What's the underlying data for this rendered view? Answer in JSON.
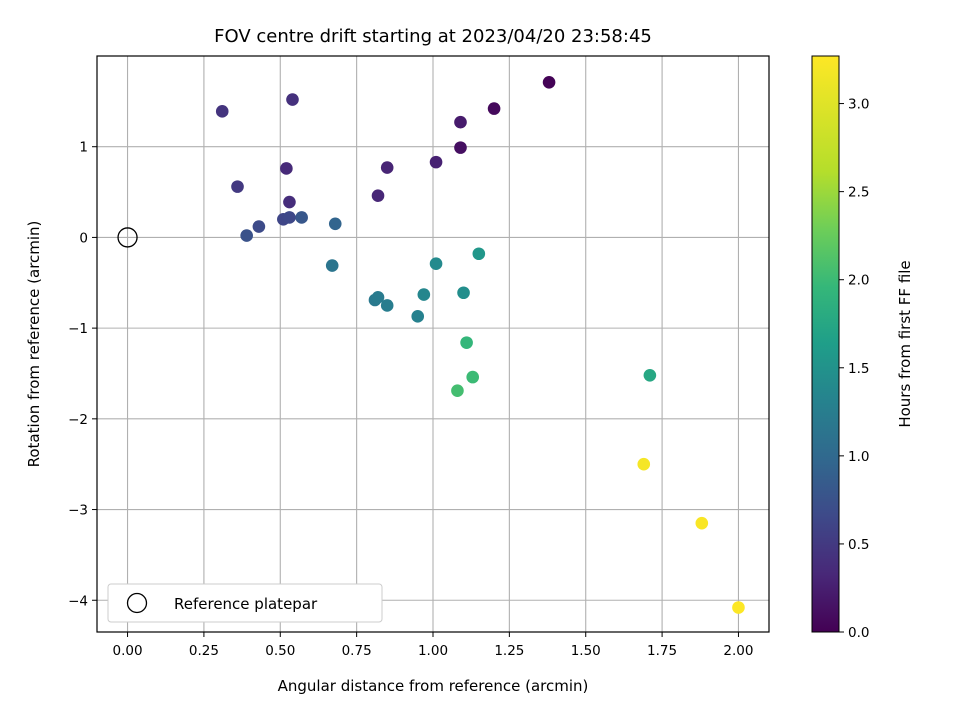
{
  "chart_data": {
    "type": "scatter",
    "title": "FOV centre drift starting at 2023/04/20 23:58:45",
    "xlabel": "Angular distance from reference (arcmin)",
    "ylabel": "Rotation from reference (arcmin)",
    "xlim": [
      -0.1,
      2.1
    ],
    "ylim": [
      -4.35,
      2.0
    ],
    "xticks": [
      "0.00",
      "0.25",
      "0.50",
      "0.75",
      "1.00",
      "1.25",
      "1.50",
      "1.75",
      "2.00"
    ],
    "yticks": [
      "1",
      "0",
      "−1",
      "−2",
      "−3",
      "−4"
    ],
    "grid": true,
    "legend": {
      "placement": "lower-left",
      "entries": [
        "Reference platepar"
      ]
    },
    "reference_point": {
      "x": 0.0,
      "y": 0.0,
      "label": "Reference platepar"
    },
    "colorbar": {
      "label": "Hours from first FF file",
      "colormap": "viridis",
      "range": [
        0.0,
        3.27
      ],
      "ticks": [
        "0.0",
        "0.5",
        "1.0",
        "1.5",
        "2.0",
        "2.5",
        "3.0"
      ]
    },
    "points": [
      {
        "x": 1.38,
        "y": 1.71,
        "hours": 0.02
      },
      {
        "x": 1.2,
        "y": 1.42,
        "hours": 0.07
      },
      {
        "x": 1.09,
        "y": 0.99,
        "hours": 0.12
      },
      {
        "x": 1.09,
        "y": 1.27,
        "hours": 0.22
      },
      {
        "x": 1.01,
        "y": 0.83,
        "hours": 0.27
      },
      {
        "x": 0.85,
        "y": 0.77,
        "hours": 0.3
      },
      {
        "x": 0.82,
        "y": 0.46,
        "hours": 0.32
      },
      {
        "x": 0.52,
        "y": 0.76,
        "hours": 0.35
      },
      {
        "x": 0.53,
        "y": 0.39,
        "hours": 0.38
      },
      {
        "x": 0.54,
        "y": 1.52,
        "hours": 0.42
      },
      {
        "x": 0.31,
        "y": 1.39,
        "hours": 0.45
      },
      {
        "x": 0.36,
        "y": 0.56,
        "hours": 0.5
      },
      {
        "x": 0.51,
        "y": 0.2,
        "hours": 0.62
      },
      {
        "x": 0.53,
        "y": 0.22,
        "hours": 0.64
      },
      {
        "x": 0.43,
        "y": 0.12,
        "hours": 0.67
      },
      {
        "x": 0.39,
        "y": 0.02,
        "hours": 0.75
      },
      {
        "x": 0.57,
        "y": 0.22,
        "hours": 0.8
      },
      {
        "x": 0.68,
        "y": 0.15,
        "hours": 0.95
      },
      {
        "x": 0.67,
        "y": -0.31,
        "hours": 1.15
      },
      {
        "x": 0.81,
        "y": -0.69,
        "hours": 1.2
      },
      {
        "x": 0.82,
        "y": -0.66,
        "hours": 1.22
      },
      {
        "x": 0.85,
        "y": -0.75,
        "hours": 1.25
      },
      {
        "x": 0.95,
        "y": -0.87,
        "hours": 1.3
      },
      {
        "x": 0.97,
        "y": -0.63,
        "hours": 1.35
      },
      {
        "x": 1.01,
        "y": -0.29,
        "hours": 1.4
      },
      {
        "x": 1.1,
        "y": -0.61,
        "hours": 1.45
      },
      {
        "x": 1.15,
        "y": -0.18,
        "hours": 1.55
      },
      {
        "x": 1.71,
        "y": -1.52,
        "hours": 1.75
      },
      {
        "x": 1.11,
        "y": -1.16,
        "hours": 1.95
      },
      {
        "x": 1.13,
        "y": -1.54,
        "hours": 2.0
      },
      {
        "x": 1.08,
        "y": -1.69,
        "hours": 2.05
      },
      {
        "x": 1.69,
        "y": -2.5,
        "hours": 3.2
      },
      {
        "x": 1.88,
        "y": -3.15,
        "hours": 3.23
      },
      {
        "x": 2.0,
        "y": -4.08,
        "hours": 3.26
      }
    ]
  }
}
